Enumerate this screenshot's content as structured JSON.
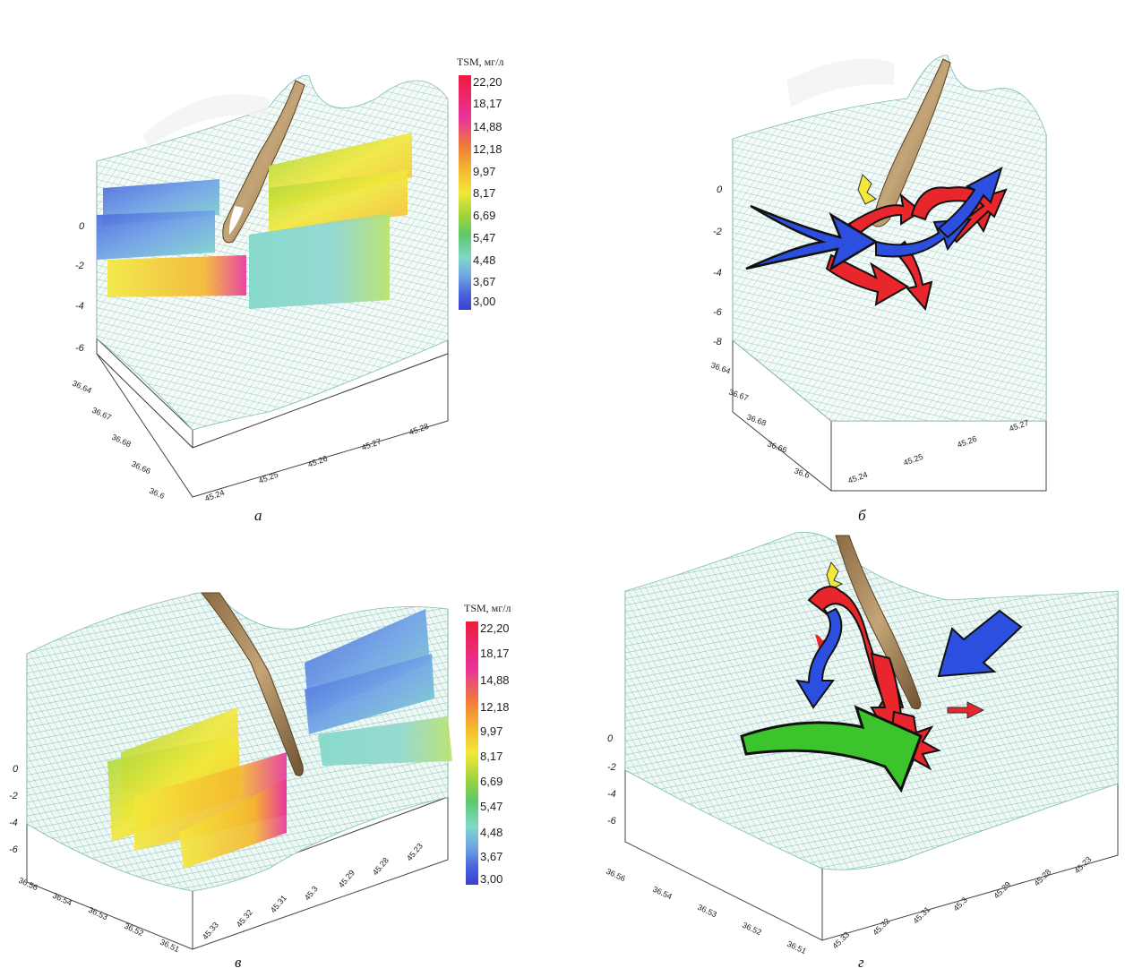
{
  "panels": {
    "a": {
      "caption": "а",
      "z_ticks": [
        "0",
        "-2",
        "-4",
        "-6"
      ],
      "lat_ticks": [
        "36.64",
        "36.67",
        "36.68",
        "36.66",
        "36.6"
      ],
      "lon_ticks": [
        "45.24",
        "45.25",
        "45.26",
        "45.27",
        "45.28"
      ]
    },
    "b": {
      "caption": "б",
      "z_ticks": [
        "0",
        "-2",
        "-4",
        "-6",
        "-8"
      ],
      "lat_ticks": [
        "36.64",
        "36.67",
        "36.68",
        "36.66",
        "36.6"
      ],
      "lon_ticks": [
        "45.24",
        "45.25",
        "45.26",
        "45.27"
      ]
    },
    "c": {
      "caption": "в",
      "z_ticks": [
        "0",
        "-2",
        "-4",
        "-6"
      ],
      "lat_ticks": [
        "36.56",
        "36.54",
        "36.53",
        "36.52",
        "36.51"
      ],
      "lon_ticks": [
        "45.33",
        "45.32",
        "45.31",
        "45.3",
        "45.29",
        "45.28",
        "45.23"
      ]
    },
    "d": {
      "caption": "г",
      "z_ticks": [
        "0",
        "-2",
        "-4",
        "-6"
      ],
      "lat_ticks": [
        "36.56",
        "36.54",
        "36.53",
        "36.52",
        "36.51"
      ],
      "lon_ticks": [
        "45.33",
        "45.32",
        "45.31",
        "45.3",
        "45.29",
        "45.28",
        "45.23"
      ]
    }
  },
  "legend": {
    "title": "TSM, мг/л",
    "values": [
      "22,20",
      "18,17",
      "14,88",
      "12,18",
      "9,97",
      "8,17",
      "6,69",
      "5,47",
      "4,48",
      "3,67",
      "3,00"
    ],
    "colors": [
      "#ee1c3a",
      "#e8339c",
      "#f07a3a",
      "#f5b62e",
      "#f2e83a",
      "#9ed43c",
      "#5cc86a",
      "#7fd8c8",
      "#6fa2e6",
      "#4a66dc",
      "#3a3fd4"
    ]
  }
}
